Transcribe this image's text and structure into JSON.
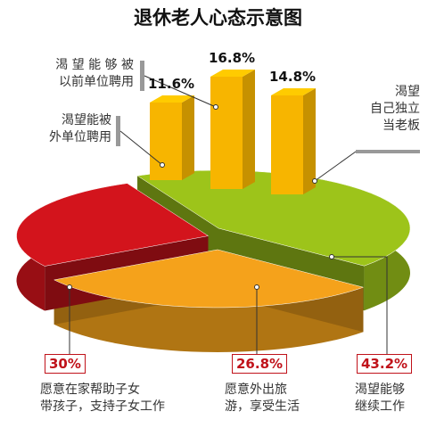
{
  "chart_data": [
    {
      "type": "pie",
      "title": "退休老人心态示意图",
      "categories": [
        "渴望能够\n继续工作",
        "愿意在家帮助子女\n带孩子，支持子女工作",
        "愿意外出旅\n游，享受生活"
      ],
      "values": [
        43.2,
        30,
        26.8
      ],
      "value_labels": [
        "43.2%",
        "30%",
        "26.8%"
      ],
      "colors": [
        "#9dc41a",
        "#f5a21b",
        "#d3141c"
      ]
    },
    {
      "type": "bar",
      "categories": [
        "渴望能被\n外单位聘用",
        "渴 望 能 够 被\n以前单位聘用",
        "渴望\n自己独立\n当老板"
      ],
      "values": [
        11.6,
        16.8,
        14.8
      ],
      "value_labels": [
        "11.6%",
        "16.8%",
        "14.8%"
      ],
      "color": "#f7b500"
    }
  ]
}
